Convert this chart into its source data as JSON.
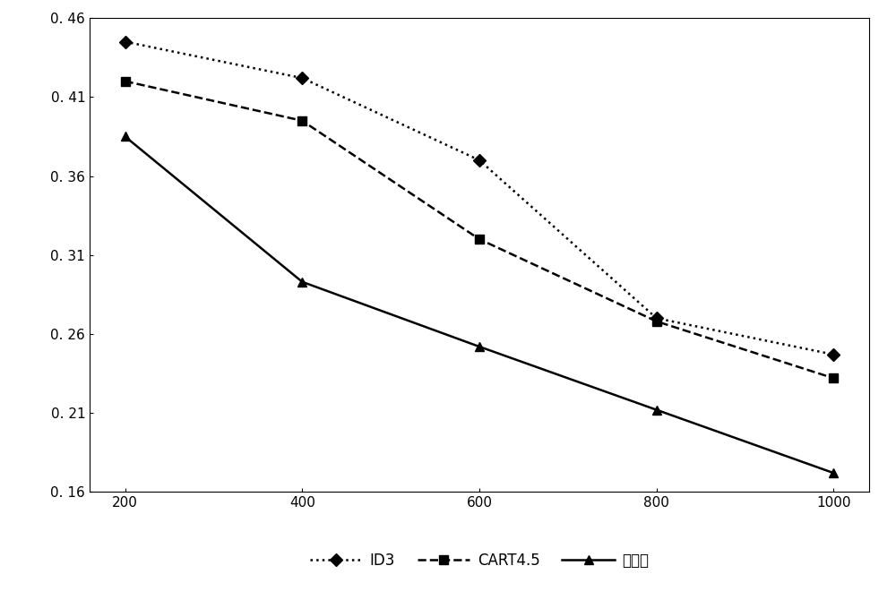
{
  "x": [
    200,
    400,
    600,
    800,
    1000
  ],
  "id3": [
    0.445,
    0.422,
    0.37,
    0.27,
    0.247
  ],
  "cart45": [
    0.42,
    0.395,
    0.32,
    0.268,
    0.232
  ],
  "benfaming": [
    0.385,
    0.293,
    0.252,
    0.212,
    0.172
  ],
  "ylim": [
    0.16,
    0.46
  ],
  "yticks": [
    0.16,
    0.21,
    0.26,
    0.31,
    0.36,
    0.41,
    0.46
  ],
  "xticks": [
    200,
    400,
    600,
    800,
    1000
  ],
  "legend_labels": [
    "ID3",
    "CART4.5",
    "本发明"
  ],
  "line_color": "#000000",
  "background_color": "#ffffff",
  "marker_id3": "D",
  "marker_cart": "s",
  "marker_ben": "^",
  "figsize": [
    10.0,
    6.7
  ],
  "dpi": 100
}
